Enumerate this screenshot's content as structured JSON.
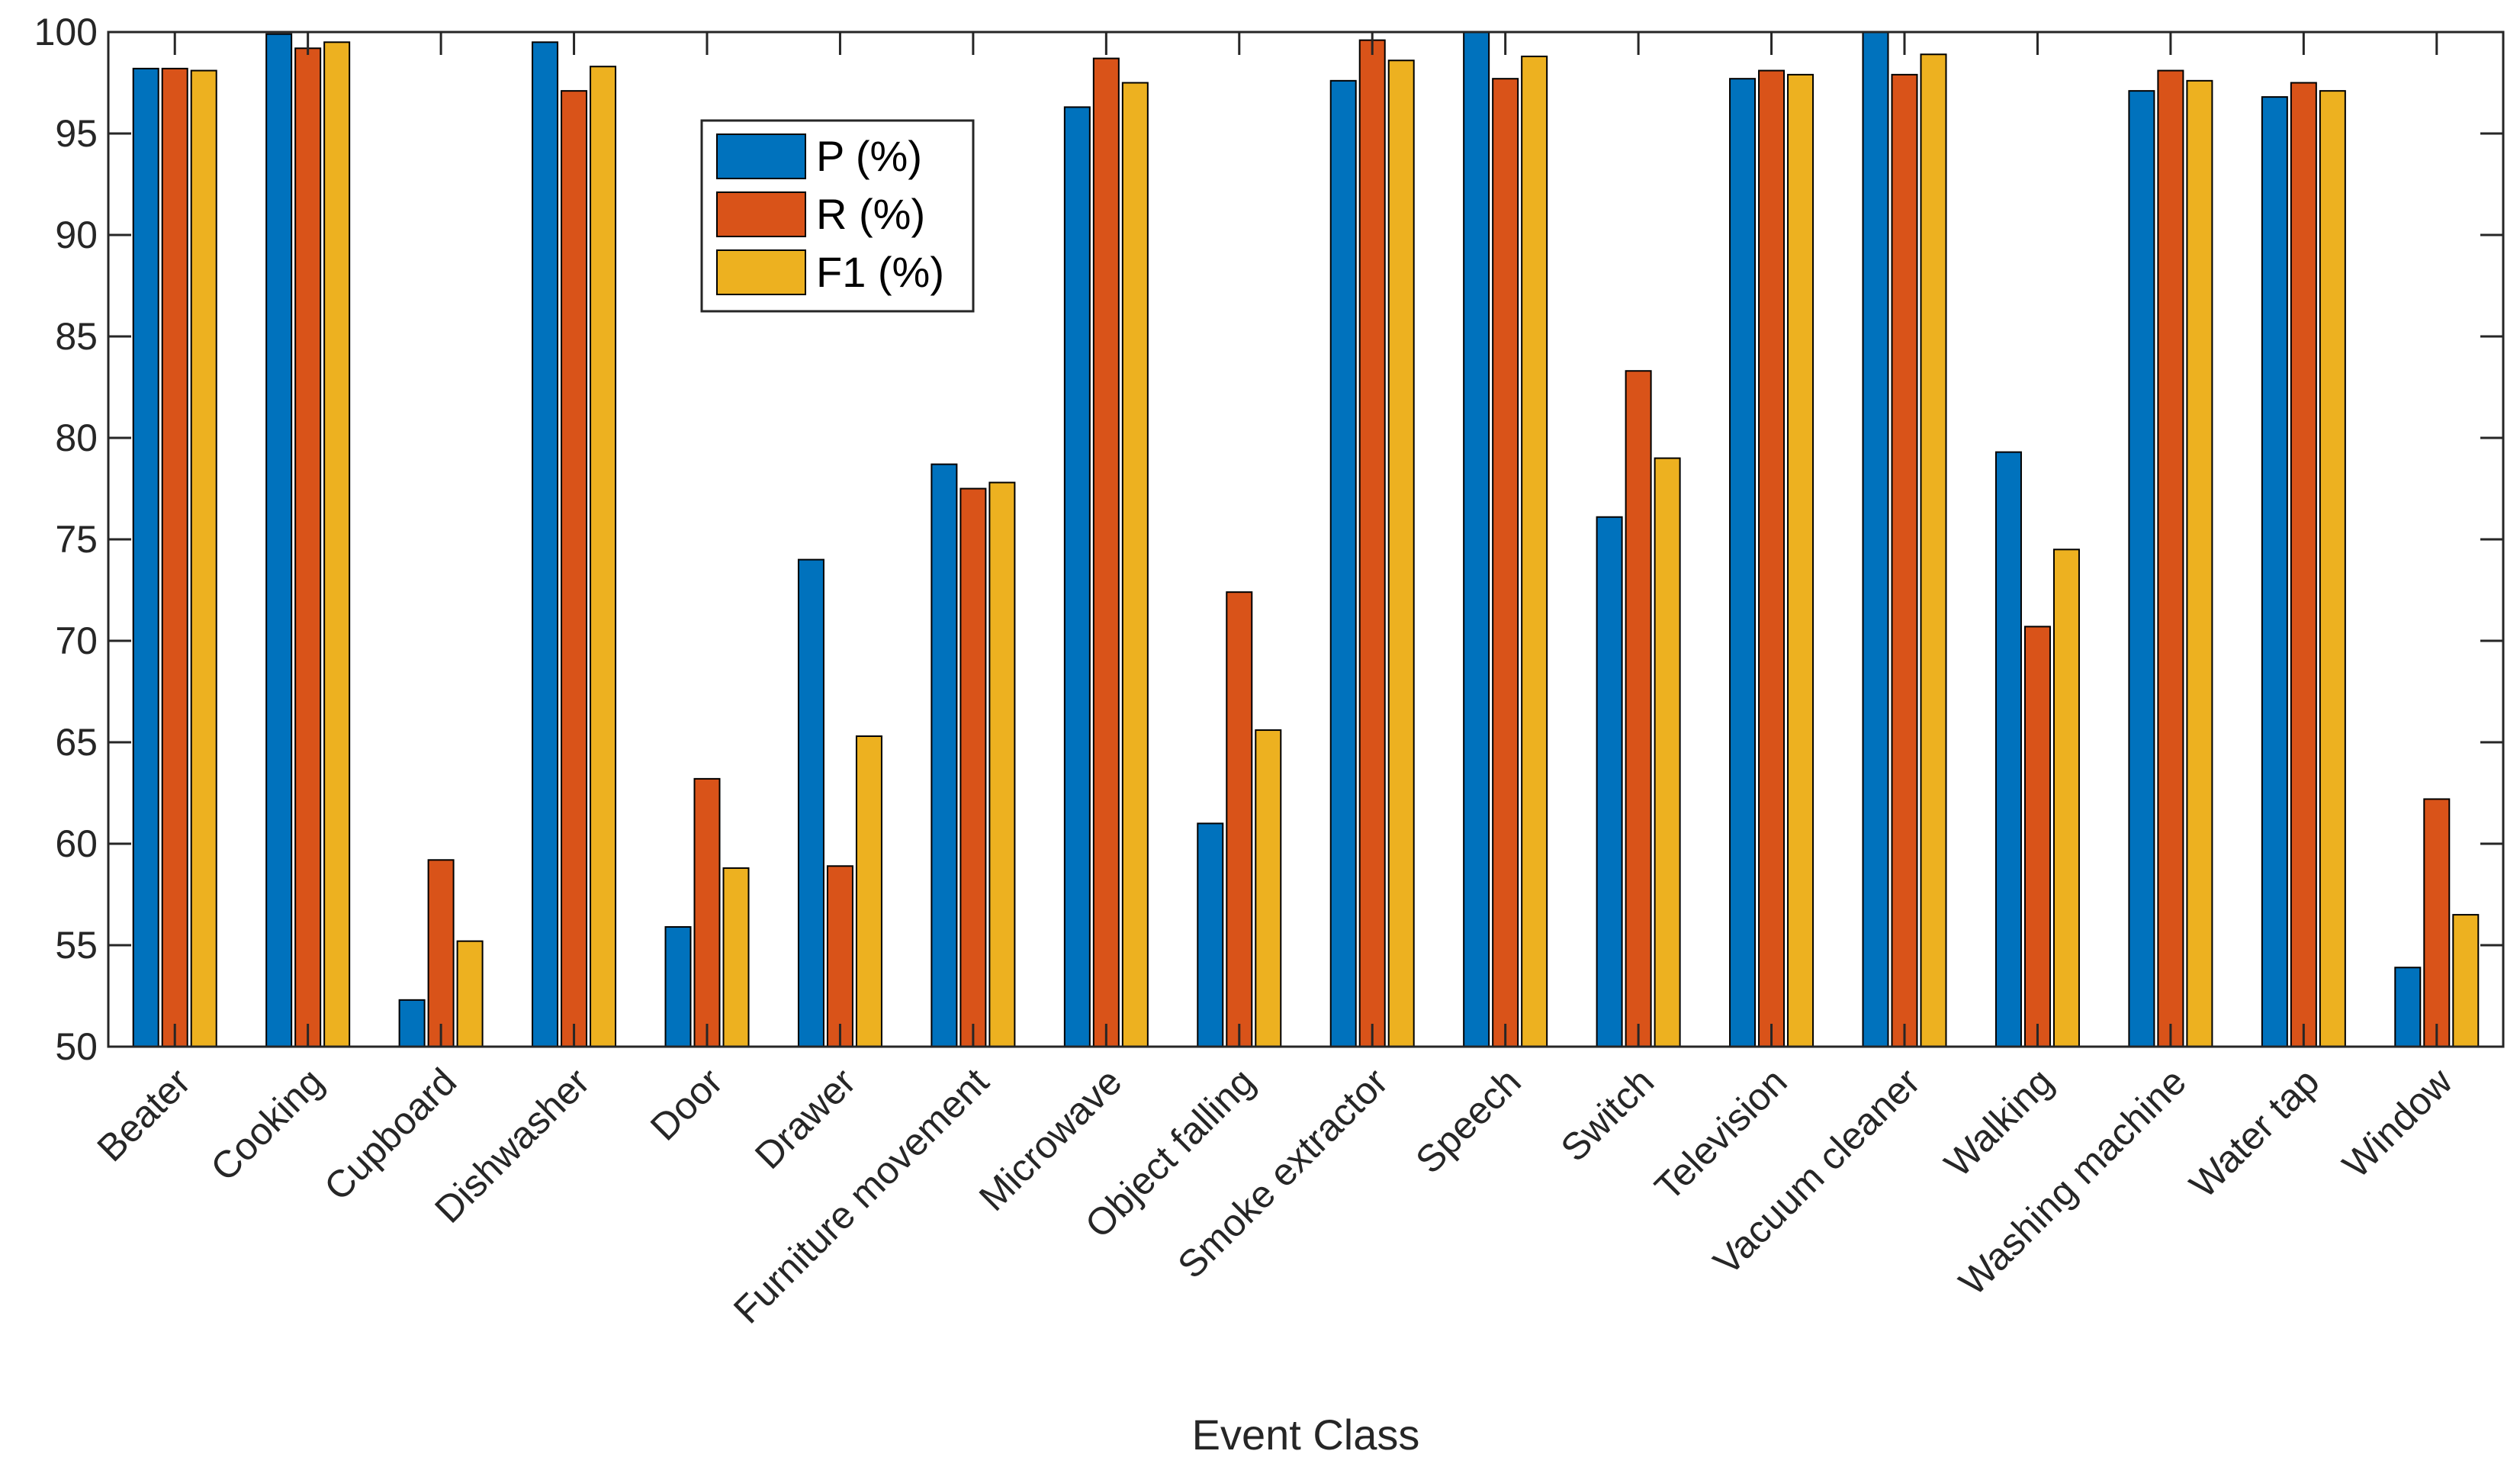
{
  "chart_data": {
    "type": "bar",
    "title": "",
    "xlabel": "Event Class",
    "ylabel": "",
    "ylim": [
      50,
      100
    ],
    "yticks": [
      50,
      55,
      60,
      65,
      70,
      75,
      80,
      85,
      90,
      95,
      100
    ],
    "grid": false,
    "legend_position": "top-left",
    "categories": [
      "Beater",
      "Cooking",
      "Cupboard",
      "Dishwasher",
      "Door",
      "Drawer",
      "Furniture movement",
      "Microwave",
      "Object falling",
      "Smoke extractor",
      "Speech",
      "Switch",
      "Television",
      "Vacuum cleaner",
      "Walking",
      "Washing machine",
      "Water tap",
      "Window"
    ],
    "series": [
      {
        "name": "P (%)",
        "color": "#0072BD",
        "values": [
          98.2,
          99.9,
          52.3,
          99.5,
          55.9,
          74.0,
          78.7,
          96.3,
          61.0,
          97.6,
          100.0,
          76.1,
          97.7,
          100.0,
          79.3,
          97.1,
          96.8,
          53.9
        ]
      },
      {
        "name": "R (%)",
        "color": "#D95319",
        "values": [
          98.2,
          99.2,
          59.2,
          97.1,
          63.2,
          58.9,
          77.5,
          98.7,
          72.4,
          99.6,
          97.7,
          83.3,
          98.1,
          97.9,
          70.7,
          98.1,
          97.5,
          62.2
        ]
      },
      {
        "name": "F1 (%)",
        "color": "#EDB120",
        "values": [
          98.1,
          99.5,
          55.2,
          98.3,
          58.8,
          65.3,
          77.8,
          97.5,
          65.6,
          98.6,
          98.8,
          79.0,
          97.9,
          98.9,
          74.5,
          97.6,
          97.1,
          56.5
        ]
      }
    ]
  }
}
